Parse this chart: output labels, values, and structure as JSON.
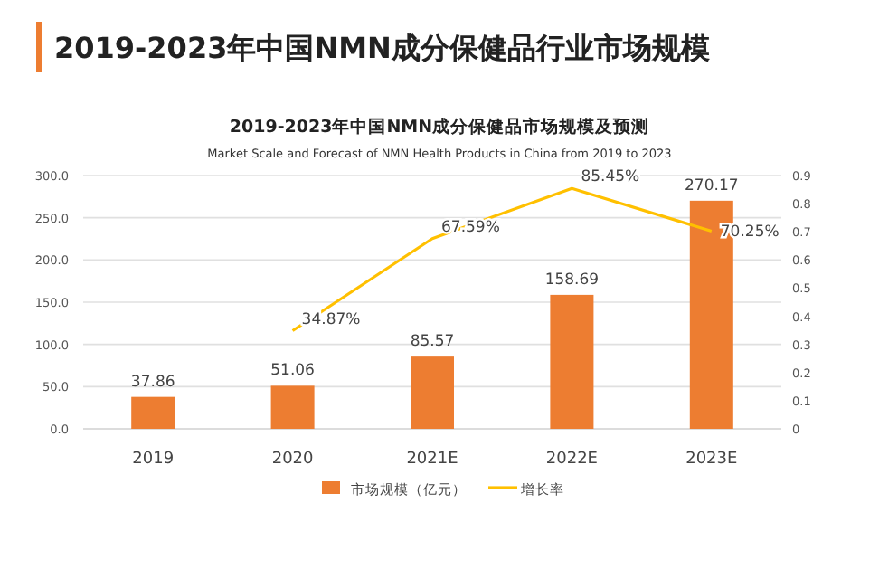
{
  "chart_data": {
    "type": "bar",
    "title": "2019-2023年中国NMN成分保健品行业市场规模",
    "subtitle": "2019-2023年中国NMN成分保健品市场规模及预测",
    "annotations": [
      "Market Scale and Forecast of NMN Health Products in China from 2019 to 2023"
    ],
    "categories": [
      "2019",
      "2020",
      "2021E",
      "2022E",
      "2023E"
    ],
    "series": [
      {
        "name": "市场规模（亿元）",
        "color": "#ed7d31",
        "values": [
          37.86,
          51.06,
          85.57,
          158.69,
          270.17
        ],
        "value_labels": [
          "37.86",
          "51.06",
          "85.57",
          "158.69",
          "270.17"
        ]
      },
      {
        "name": "增长率",
        "type": "line",
        "axis": "y2",
        "color": "#ffc000",
        "values": [
          null,
          0.3487,
          0.6759,
          0.8545,
          0.7025
        ],
        "value_labels": [
          null,
          "34.87%",
          "67.59%",
          "85.45%",
          "70.25%"
        ]
      }
    ],
    "ylim": [
      0,
      300
    ],
    "yticks": [
      {
        "value": 0,
        "label": "0.0"
      },
      {
        "value": 50,
        "label": "50.0"
      },
      {
        "value": 100,
        "label": "100.0"
      },
      {
        "value": 150,
        "label": "150.0"
      },
      {
        "value": 200,
        "label": "200.0"
      },
      {
        "value": 250,
        "label": "250.0"
      },
      {
        "value": 300,
        "label": "300.0"
      }
    ],
    "y2lim": [
      0,
      0.9
    ],
    "y2ticks": [
      0,
      0.1,
      0.2,
      0.3,
      0.4,
      0.5,
      0.6,
      0.7,
      0.8,
      0.9
    ],
    "grid": "y",
    "legend": "bottom"
  }
}
